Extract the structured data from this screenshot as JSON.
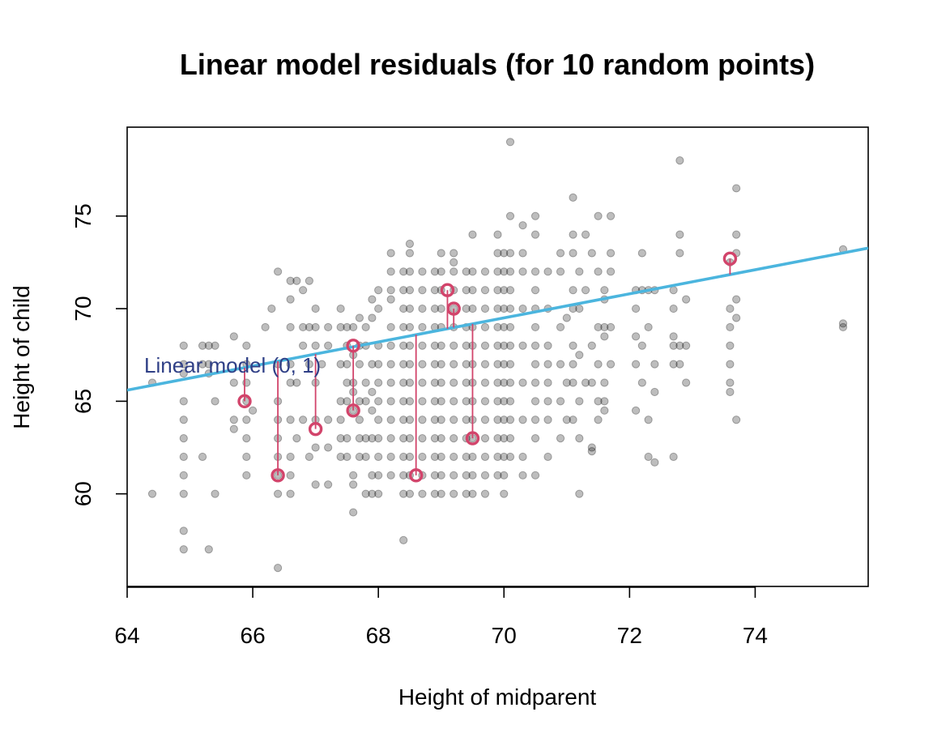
{
  "chart_data": {
    "type": "scatter",
    "title": "Linear model residuals (for 10 random points)",
    "xlabel": "Height of midparent",
    "ylabel": "Height of child",
    "xlim": [
      64,
      75.8
    ],
    "ylim": [
      55,
      79.8
    ],
    "x_ticks": [
      64,
      66,
      68,
      70,
      72,
      74
    ],
    "y_ticks": [
      60,
      65,
      70,
      75
    ],
    "grid": false,
    "colors": {
      "points": "#000000",
      "line": "#4bb5de",
      "residual": "#d2446b",
      "annotation": "#2f3f86"
    },
    "fit_line": {
      "label": "Linear model (0, 1)",
      "intercept": 24,
      "slope": 0.65
    },
    "points": [
      [
        64.4,
        66
      ],
      [
        64.4,
        60
      ],
      [
        64.9,
        68
      ],
      [
        64.9,
        67
      ],
      [
        64.9,
        66.5
      ],
      [
        64.9,
        65
      ],
      [
        64.9,
        64
      ],
      [
        64.9,
        63
      ],
      [
        64.9,
        62
      ],
      [
        64.9,
        61
      ],
      [
        64.9,
        60
      ],
      [
        64.9,
        58
      ],
      [
        64.9,
        57
      ],
      [
        65.2,
        68
      ],
      [
        65.2,
        67
      ],
      [
        65.2,
        62
      ],
      [
        65.3,
        68
      ],
      [
        65.3,
        67
      ],
      [
        65.3,
        66.5
      ],
      [
        65.3,
        57
      ],
      [
        65.4,
        68
      ],
      [
        65.4,
        65
      ],
      [
        65.4,
        60
      ],
      [
        65.7,
        68.5
      ],
      [
        65.7,
        66
      ],
      [
        65.7,
        64
      ],
      [
        65.7,
        63.5
      ],
      [
        65.9,
        68
      ],
      [
        65.9,
        67
      ],
      [
        65.9,
        66
      ],
      [
        65.9,
        65
      ],
      [
        65.9,
        64
      ],
      [
        65.9,
        63
      ],
      [
        65.9,
        62
      ],
      [
        65.9,
        61
      ],
      [
        66.0,
        64.5
      ],
      [
        66.2,
        69
      ],
      [
        66.3,
        70
      ],
      [
        66.4,
        72
      ],
      [
        66.4,
        67
      ],
      [
        66.4,
        65
      ],
      [
        66.4,
        64
      ],
      [
        66.4,
        63
      ],
      [
        66.4,
        62
      ],
      [
        66.4,
        61
      ],
      [
        66.4,
        60
      ],
      [
        66.4,
        56
      ],
      [
        66.6,
        71.5
      ],
      [
        66.6,
        70.5
      ],
      [
        66.6,
        69
      ],
      [
        66.6,
        67
      ],
      [
        66.6,
        66
      ],
      [
        66.6,
        64
      ],
      [
        66.6,
        62
      ],
      [
        66.6,
        61
      ],
      [
        66.6,
        60
      ],
      [
        66.7,
        71.5
      ],
      [
        66.7,
        66
      ],
      [
        66.7,
        63
      ],
      [
        66.8,
        71
      ],
      [
        66.8,
        69
      ],
      [
        66.8,
        68
      ],
      [
        66.8,
        64
      ],
      [
        66.9,
        71.5
      ],
      [
        66.9,
        69
      ],
      [
        66.9,
        67
      ],
      [
        66.9,
        62
      ],
      [
        67.0,
        70
      ],
      [
        67.0,
        69
      ],
      [
        67.0,
        68
      ],
      [
        67.0,
        66
      ],
      [
        67.0,
        64
      ],
      [
        67.0,
        62.5
      ],
      [
        67.0,
        60.5
      ],
      [
        67.1,
        67
      ],
      [
        67.2,
        69
      ],
      [
        67.2,
        68
      ],
      [
        67.2,
        64
      ],
      [
        67.2,
        62.5
      ],
      [
        67.2,
        60.5
      ],
      [
        67.4,
        70
      ],
      [
        67.4,
        69
      ],
      [
        67.4,
        67
      ],
      [
        67.4,
        65
      ],
      [
        67.4,
        64
      ],
      [
        67.4,
        63
      ],
      [
        67.4,
        62
      ],
      [
        67.5,
        69
      ],
      [
        67.5,
        68
      ],
      [
        67.5,
        67
      ],
      [
        67.5,
        66
      ],
      [
        67.5,
        65
      ],
      [
        67.5,
        63
      ],
      [
        67.5,
        62
      ],
      [
        67.6,
        69
      ],
      [
        67.6,
        67.5
      ],
      [
        67.6,
        66
      ],
      [
        67.6,
        65.5
      ],
      [
        67.6,
        64.5
      ],
      [
        67.6,
        61
      ],
      [
        67.6,
        60.5
      ],
      [
        67.6,
        59
      ],
      [
        67.7,
        69.5
      ],
      [
        67.7,
        68
      ],
      [
        67.7,
        67
      ],
      [
        67.7,
        65
      ],
      [
        67.7,
        64
      ],
      [
        67.7,
        63
      ],
      [
        67.7,
        62
      ],
      [
        67.8,
        69
      ],
      [
        67.8,
        68
      ],
      [
        67.8,
        66
      ],
      [
        67.8,
        65
      ],
      [
        67.8,
        63
      ],
      [
        67.8,
        62
      ],
      [
        67.8,
        60
      ],
      [
        67.9,
        70.5
      ],
      [
        67.9,
        69.5
      ],
      [
        67.9,
        67
      ],
      [
        67.9,
        65.5
      ],
      [
        67.9,
        64.5
      ],
      [
        67.9,
        63
      ],
      [
        67.9,
        61
      ],
      [
        67.9,
        60
      ],
      [
        68.0,
        71
      ],
      [
        68.0,
        70
      ],
      [
        68.0,
        68
      ],
      [
        68.0,
        67
      ],
      [
        68.0,
        66
      ],
      [
        68.0,
        65
      ],
      [
        68.0,
        64
      ],
      [
        68.0,
        63
      ],
      [
        68.0,
        62
      ],
      [
        68.0,
        61
      ],
      [
        68.0,
        60
      ],
      [
        68.2,
        73
      ],
      [
        68.2,
        72
      ],
      [
        68.2,
        71
      ],
      [
        68.2,
        70.5
      ],
      [
        68.2,
        69
      ],
      [
        68.2,
        68
      ],
      [
        68.2,
        67
      ],
      [
        68.2,
        66
      ],
      [
        68.2,
        65
      ],
      [
        68.2,
        64
      ],
      [
        68.2,
        63
      ],
      [
        68.2,
        62
      ],
      [
        68.2,
        61
      ],
      [
        68.4,
        72
      ],
      [
        68.4,
        71
      ],
      [
        68.4,
        70
      ],
      [
        68.4,
        69
      ],
      [
        68.4,
        68
      ],
      [
        68.4,
        67
      ],
      [
        68.4,
        66
      ],
      [
        68.4,
        65
      ],
      [
        68.4,
        64
      ],
      [
        68.4,
        63
      ],
      [
        68.4,
        62
      ],
      [
        68.4,
        61
      ],
      [
        68.4,
        60
      ],
      [
        68.4,
        57.5
      ],
      [
        68.5,
        73.5
      ],
      [
        68.5,
        73
      ],
      [
        68.5,
        72
      ],
      [
        68.5,
        71
      ],
      [
        68.5,
        70
      ],
      [
        68.5,
        69
      ],
      [
        68.5,
        68
      ],
      [
        68.5,
        67
      ],
      [
        68.5,
        66
      ],
      [
        68.5,
        65
      ],
      [
        68.5,
        64
      ],
      [
        68.5,
        63
      ],
      [
        68.5,
        62
      ],
      [
        68.5,
        61
      ],
      [
        68.5,
        60
      ],
      [
        68.7,
        72
      ],
      [
        68.7,
        71
      ],
      [
        68.7,
        70
      ],
      [
        68.7,
        69
      ],
      [
        68.7,
        68
      ],
      [
        68.7,
        67
      ],
      [
        68.7,
        66
      ],
      [
        68.7,
        65
      ],
      [
        68.7,
        64
      ],
      [
        68.7,
        63
      ],
      [
        68.7,
        62
      ],
      [
        68.7,
        61
      ],
      [
        68.7,
        60
      ],
      [
        68.9,
        72
      ],
      [
        68.9,
        71
      ],
      [
        68.9,
        70
      ],
      [
        68.9,
        69
      ],
      [
        68.9,
        68
      ],
      [
        68.9,
        67
      ],
      [
        68.9,
        66
      ],
      [
        68.9,
        65
      ],
      [
        68.9,
        64
      ],
      [
        68.9,
        63
      ],
      [
        68.9,
        62
      ],
      [
        68.9,
        61
      ],
      [
        68.9,
        60
      ],
      [
        69.0,
        73
      ],
      [
        69.0,
        72
      ],
      [
        69.0,
        71
      ],
      [
        69.0,
        70
      ],
      [
        69.0,
        69
      ],
      [
        69.0,
        68
      ],
      [
        69.0,
        67
      ],
      [
        69.0,
        66
      ],
      [
        69.0,
        65
      ],
      [
        69.0,
        64
      ],
      [
        69.0,
        63
      ],
      [
        69.0,
        62
      ],
      [
        69.0,
        61
      ],
      [
        69.0,
        60
      ],
      [
        69.2,
        73
      ],
      [
        69.2,
        72.5
      ],
      [
        69.2,
        72
      ],
      [
        69.2,
        71
      ],
      [
        69.2,
        70
      ],
      [
        69.2,
        69
      ],
      [
        69.2,
        68
      ],
      [
        69.2,
        67
      ],
      [
        69.2,
        66
      ],
      [
        69.2,
        65
      ],
      [
        69.2,
        64
      ],
      [
        69.2,
        63
      ],
      [
        69.2,
        62
      ],
      [
        69.2,
        61
      ],
      [
        69.2,
        60
      ],
      [
        69.4,
        72
      ],
      [
        69.4,
        71
      ],
      [
        69.4,
        70
      ],
      [
        69.4,
        69
      ],
      [
        69.4,
        68
      ],
      [
        69.4,
        67
      ],
      [
        69.4,
        66
      ],
      [
        69.4,
        65
      ],
      [
        69.4,
        64
      ],
      [
        69.4,
        63
      ],
      [
        69.4,
        62
      ],
      [
        69.4,
        61
      ],
      [
        69.4,
        60
      ],
      [
        69.5,
        74
      ],
      [
        69.5,
        72
      ],
      [
        69.5,
        71
      ],
      [
        69.5,
        70
      ],
      [
        69.5,
        69
      ],
      [
        69.5,
        68
      ],
      [
        69.5,
        67
      ],
      [
        69.5,
        66
      ],
      [
        69.5,
        65
      ],
      [
        69.5,
        64
      ],
      [
        69.5,
        63
      ],
      [
        69.5,
        62
      ],
      [
        69.5,
        61
      ],
      [
        69.5,
        60
      ],
      [
        69.7,
        72
      ],
      [
        69.7,
        71
      ],
      [
        69.7,
        70
      ],
      [
        69.7,
        69
      ],
      [
        69.7,
        68
      ],
      [
        69.7,
        67
      ],
      [
        69.7,
        66
      ],
      [
        69.7,
        65
      ],
      [
        69.7,
        64
      ],
      [
        69.7,
        63
      ],
      [
        69.7,
        62
      ],
      [
        69.7,
        61
      ],
      [
        69.7,
        60
      ],
      [
        69.9,
        74
      ],
      [
        69.9,
        73
      ],
      [
        69.9,
        72
      ],
      [
        69.9,
        71
      ],
      [
        69.9,
        70
      ],
      [
        69.9,
        69
      ],
      [
        69.9,
        68
      ],
      [
        69.9,
        67
      ],
      [
        69.9,
        66
      ],
      [
        69.9,
        65
      ],
      [
        69.9,
        64
      ],
      [
        69.9,
        63
      ],
      [
        69.9,
        62
      ],
      [
        69.9,
        61
      ],
      [
        70.0,
        73
      ],
      [
        70.0,
        72
      ],
      [
        70.0,
        71
      ],
      [
        70.0,
        70
      ],
      [
        70.0,
        69
      ],
      [
        70.0,
        68
      ],
      [
        70.0,
        67
      ],
      [
        70.0,
        66
      ],
      [
        70.0,
        65
      ],
      [
        70.0,
        64
      ],
      [
        70.0,
        63
      ],
      [
        70.0,
        62
      ],
      [
        70.0,
        61
      ],
      [
        70.0,
        60
      ],
      [
        70.1,
        79
      ],
      [
        70.1,
        75
      ],
      [
        70.1,
        73
      ],
      [
        70.1,
        72
      ],
      [
        70.1,
        71
      ],
      [
        70.1,
        70
      ],
      [
        70.1,
        69
      ],
      [
        70.1,
        68
      ],
      [
        70.1,
        67
      ],
      [
        70.1,
        66
      ],
      [
        70.1,
        65
      ],
      [
        70.1,
        64
      ],
      [
        70.1,
        63
      ],
      [
        70.1,
        62
      ],
      [
        70.3,
        74.5
      ],
      [
        70.3,
        73
      ],
      [
        70.3,
        72
      ],
      [
        70.3,
        70
      ],
      [
        70.3,
        68
      ],
      [
        70.3,
        66
      ],
      [
        70.3,
        64
      ],
      [
        70.3,
        62
      ],
      [
        70.3,
        61
      ],
      [
        70.5,
        75
      ],
      [
        70.5,
        74
      ],
      [
        70.5,
        72
      ],
      [
        70.5,
        71
      ],
      [
        70.5,
        70
      ],
      [
        70.5,
        69
      ],
      [
        70.5,
        68
      ],
      [
        70.5,
        67
      ],
      [
        70.5,
        66
      ],
      [
        70.5,
        65
      ],
      [
        70.5,
        64
      ],
      [
        70.5,
        63
      ],
      [
        70.5,
        61
      ],
      [
        70.7,
        72
      ],
      [
        70.7,
        70
      ],
      [
        70.7,
        68
      ],
      [
        70.7,
        67
      ],
      [
        70.7,
        66
      ],
      [
        70.7,
        65
      ],
      [
        70.7,
        64
      ],
      [
        70.7,
        62
      ],
      [
        70.9,
        73
      ],
      [
        70.9,
        72
      ],
      [
        70.9,
        69
      ],
      [
        70.9,
        67
      ],
      [
        70.9,
        65
      ],
      [
        70.9,
        63
      ],
      [
        71.0,
        69.5
      ],
      [
        71.0,
        66
      ],
      [
        71.0,
        64
      ],
      [
        71.1,
        76
      ],
      [
        71.1,
        74
      ],
      [
        71.1,
        73
      ],
      [
        71.1,
        71
      ],
      [
        71.1,
        70
      ],
      [
        71.1,
        68
      ],
      [
        71.1,
        67
      ],
      [
        71.1,
        66
      ],
      [
        71.1,
        64
      ],
      [
        71.2,
        72
      ],
      [
        71.2,
        70
      ],
      [
        71.2,
        67.5
      ],
      [
        71.2,
        65
      ],
      [
        71.2,
        63
      ],
      [
        71.2,
        60
      ],
      [
        71.3,
        74
      ],
      [
        71.3,
        71
      ],
      [
        71.3,
        66
      ],
      [
        71.4,
        73
      ],
      [
        71.4,
        68
      ],
      [
        71.4,
        66
      ],
      [
        71.4,
        62.5
      ],
      [
        71.4,
        62.3
      ],
      [
        71.5,
        75
      ],
      [
        71.5,
        72
      ],
      [
        71.5,
        69
      ],
      [
        71.5,
        67
      ],
      [
        71.5,
        65
      ],
      [
        71.5,
        64
      ],
      [
        71.6,
        71
      ],
      [
        71.6,
        70.5
      ],
      [
        71.6,
        69
      ],
      [
        71.6,
        68.5
      ],
      [
        71.6,
        66
      ],
      [
        71.6,
        65
      ],
      [
        71.6,
        64.5
      ],
      [
        71.7,
        75
      ],
      [
        71.7,
        73
      ],
      [
        71.7,
        72
      ],
      [
        71.7,
        69
      ],
      [
        71.7,
        67
      ],
      [
        72.1,
        71
      ],
      [
        72.1,
        70
      ],
      [
        72.1,
        68.5
      ],
      [
        72.1,
        67
      ],
      [
        72.1,
        64.5
      ],
      [
        72.2,
        73
      ],
      [
        72.2,
        71
      ],
      [
        72.2,
        68
      ],
      [
        72.2,
        66
      ],
      [
        72.3,
        71
      ],
      [
        72.3,
        69
      ],
      [
        72.3,
        64
      ],
      [
        72.3,
        62
      ],
      [
        72.4,
        71
      ],
      [
        72.4,
        67
      ],
      [
        72.4,
        65.5
      ],
      [
        72.4,
        61.7
      ],
      [
        72.7,
        71
      ],
      [
        72.7,
        70
      ],
      [
        72.7,
        68.5
      ],
      [
        72.7,
        68
      ],
      [
        72.7,
        67
      ],
      [
        72.7,
        62
      ],
      [
        72.8,
        78
      ],
      [
        72.8,
        74
      ],
      [
        72.8,
        73
      ],
      [
        72.8,
        68
      ],
      [
        72.8,
        67
      ],
      [
        72.9,
        70.5
      ],
      [
        72.9,
        68
      ],
      [
        72.9,
        66
      ],
      [
        73.6,
        72.5
      ],
      [
        73.6,
        70
      ],
      [
        73.6,
        69
      ],
      [
        73.6,
        68
      ],
      [
        73.6,
        67
      ],
      [
        73.6,
        66
      ],
      [
        73.6,
        65.5
      ],
      [
        73.7,
        76.5
      ],
      [
        73.7,
        74
      ],
      [
        73.7,
        73
      ],
      [
        73.7,
        70.5
      ],
      [
        73.7,
        69.5
      ],
      [
        73.7,
        64
      ],
      [
        75.4,
        73.2
      ],
      [
        75.4,
        69.2
      ],
      [
        75.4,
        69
      ]
    ],
    "highlighted_points": [
      [
        65.87,
        65
      ],
      [
        66.4,
        61
      ],
      [
        67.0,
        63.5
      ],
      [
        67.6,
        68
      ],
      [
        67.6,
        64.5
      ],
      [
        68.6,
        61
      ],
      [
        69.1,
        71
      ],
      [
        69.2,
        70
      ],
      [
        69.5,
        63
      ],
      [
        73.6,
        72.7
      ]
    ]
  }
}
